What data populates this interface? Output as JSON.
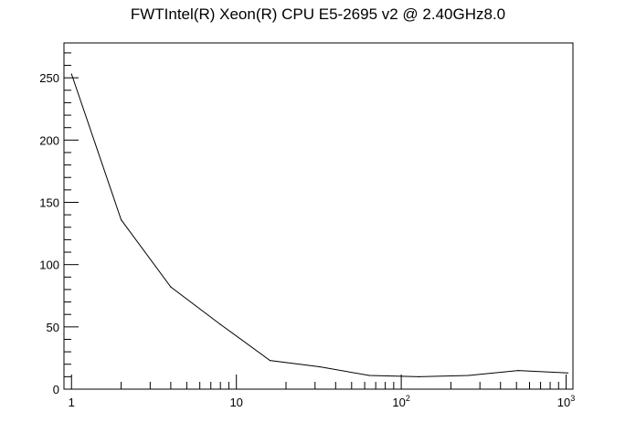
{
  "chart_data": {
    "type": "line",
    "title": "FWTIntel(R) Xeon(R) CPU E5-2695 v2 @ 2.40GHz8.0",
    "xlabel": "",
    "ylabel": "",
    "x_scale": "log",
    "xlim": [
      0.9,
      1100
    ],
    "ylim": [
      0,
      278
    ],
    "x_ticks": [
      {
        "value": 1,
        "base": "1",
        "sup": ""
      },
      {
        "value": 10,
        "base": "10",
        "sup": ""
      },
      {
        "value": 100,
        "base": "10",
        "sup": "2"
      },
      {
        "value": 1000,
        "base": "10",
        "sup": "3"
      }
    ],
    "y_ticks": [
      0,
      50,
      100,
      150,
      200,
      250
    ],
    "grid": false,
    "legend": "none",
    "series": [
      {
        "x": [
          1,
          2,
          4,
          8,
          16,
          32,
          64,
          128,
          256,
          512,
          1024
        ],
        "y": [
          253,
          136,
          82,
          52,
          23,
          18,
          11,
          10,
          11,
          15,
          13
        ],
        "color": "#000000"
      }
    ]
  }
}
